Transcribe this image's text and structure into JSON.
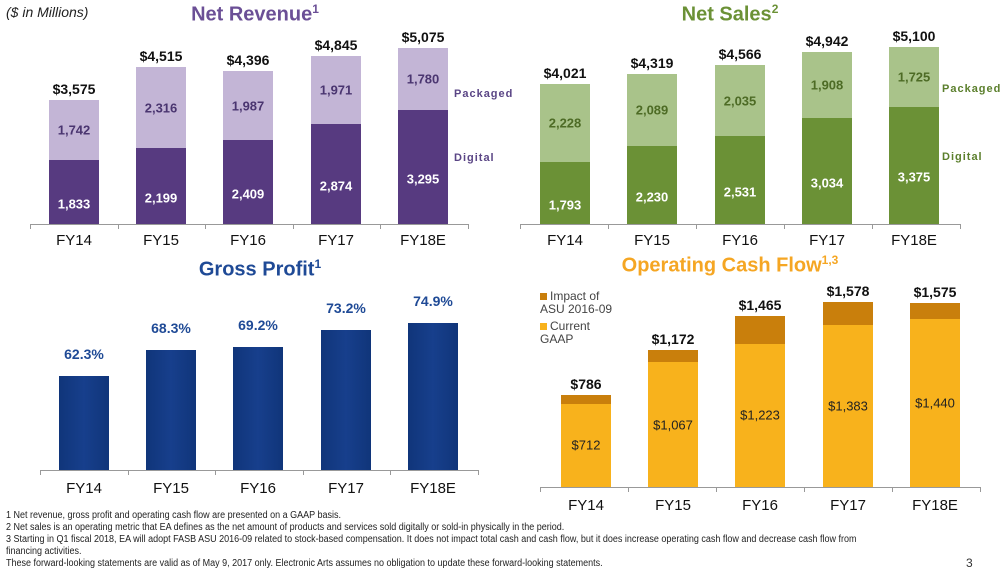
{
  "unit_label": "($ in Millions)",
  "page_number": "3",
  "footnotes": [
    "1  Net revenue, gross profit and operating cash flow are presented on a GAAP basis.",
    "2  Net sales is an operating metric that EA defines as the net amount of products and services sold digitally or sold-in physically in the period.",
    "3  Starting in Q1 fiscal 2018, EA will adopt FASB ASU 2016-09 related to stock-based compensation. It does not impact total cash and cash flow, but it does increase operating cash flow and decrease cash flow from financing activities.",
    "These forward-looking statements are valid as of May 9, 2017 only. Electronic Arts assumes no obligation to update these forward-looking statements."
  ],
  "chart_data": [
    {
      "type": "bar",
      "stacked": true,
      "title": "Net Revenue",
      "title_sup": "1",
      "categories": [
        "FY14",
        "FY15",
        "FY16",
        "FY17",
        "FY18E"
      ],
      "series": [
        {
          "name": "Digital",
          "values": [
            1833,
            2199,
            2409,
            2874,
            3295
          ],
          "labels": [
            "1,833",
            "2,199",
            "2,409",
            "2,874",
            "3,295"
          ],
          "color": "#573a80",
          "label_color": "#ffffff"
        },
        {
          "name": "Packaged",
          "values": [
            1742,
            2316,
            1987,
            1971,
            1780
          ],
          "labels": [
            "1,742",
            "2,316",
            "1,987",
            "1,971",
            "1,780"
          ],
          "color": "#c3b5d6",
          "label_color": "#4a3570"
        }
      ],
      "totals": [
        "$3,575",
        "$4,515",
        "$4,396",
        "$4,845",
        "$5,075"
      ],
      "legend": [
        "Packaged",
        "Digital"
      ],
      "title_color": "#6b4f96",
      "legend_color": "#5a4585"
    },
    {
      "type": "bar",
      "stacked": true,
      "title": "Net Sales",
      "title_sup": "2",
      "categories": [
        "FY14",
        "FY15",
        "FY16",
        "FY17",
        "FY18E"
      ],
      "series": [
        {
          "name": "Digital",
          "values": [
            1793,
            2230,
            2531,
            3034,
            3375
          ],
          "labels": [
            "1,793",
            "2,230",
            "2,531",
            "3,034",
            "3,375"
          ],
          "color": "#6b9136",
          "label_color": "#ffffff"
        },
        {
          "name": "Packaged",
          "values": [
            2228,
            2089,
            2035,
            1908,
            1725
          ],
          "labels": [
            "2,228",
            "2,089",
            "2,035",
            "1,908",
            "1,725"
          ],
          "color": "#a9c38a",
          "label_color": "#4d6b25"
        }
      ],
      "totals": [
        "$4,021",
        "$4,319",
        "$4,566",
        "$4,942",
        "$5,100"
      ],
      "legend": [
        "Packaged",
        "Digital"
      ],
      "title_color": "#6b9136",
      "legend_color": "#5b7f2c"
    },
    {
      "type": "bar",
      "title": "Gross Profit",
      "title_sup": "1",
      "categories": [
        "FY14",
        "FY15",
        "FY16",
        "FY17",
        "FY18E"
      ],
      "values": [
        62.3,
        68.3,
        69.2,
        73.2,
        74.9
      ],
      "labels": [
        "62.3%",
        "68.3%",
        "69.2%",
        "73.2%",
        "74.9%"
      ],
      "color": "#173f8c",
      "title_color": "#1f4a96"
    },
    {
      "type": "bar",
      "stacked": true,
      "title": "Operating Cash Flow",
      "title_sup": "1,3",
      "categories": [
        "FY14",
        "FY15",
        "FY16",
        "FY17",
        "FY18E"
      ],
      "series": [
        {
          "name": "Current GAAP",
          "values": [
            712,
            1067,
            1223,
            1383,
            1440
          ],
          "labels": [
            "$712",
            "$1,067",
            "$1,223",
            "$1,383",
            "$1,440"
          ],
          "color": "#f8b21c",
          "label_color": "#222222"
        },
        {
          "name": "Impact of ASU 2016-09",
          "values": [
            74,
            105,
            242,
            195,
            135
          ],
          "labels": [],
          "color": "#c97f0c",
          "label_color": "#222222"
        }
      ],
      "totals": [
        "$786",
        "$1,172",
        "$1,465",
        "$1,578",
        "$1,575"
      ],
      "legend": [
        "Impact of ASU 2016-09",
        "Current GAAP"
      ],
      "title_color": "#f5a623"
    }
  ]
}
